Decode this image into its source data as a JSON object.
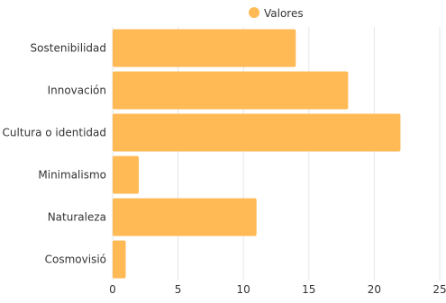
{
  "chart_data": {
    "type": "bar",
    "orientation": "horizontal",
    "categories": [
      "Sostenibilidad",
      "Innovación",
      "Cultura o identidad",
      "Minimalismo",
      "Naturaleza",
      "Cosmovisió"
    ],
    "series": [
      {
        "name": "Valores",
        "values": [
          14,
          18,
          22,
          2,
          11,
          1
        ],
        "color": "#FFBA55"
      }
    ],
    "title": "",
    "xlabel": "",
    "ylabel": "",
    "xlim": [
      0,
      25
    ],
    "xticks": [
      "0",
      "5",
      "10",
      "15",
      "20",
      "25"
    ],
    "grid": "vertical",
    "legend_position": "top-center"
  }
}
